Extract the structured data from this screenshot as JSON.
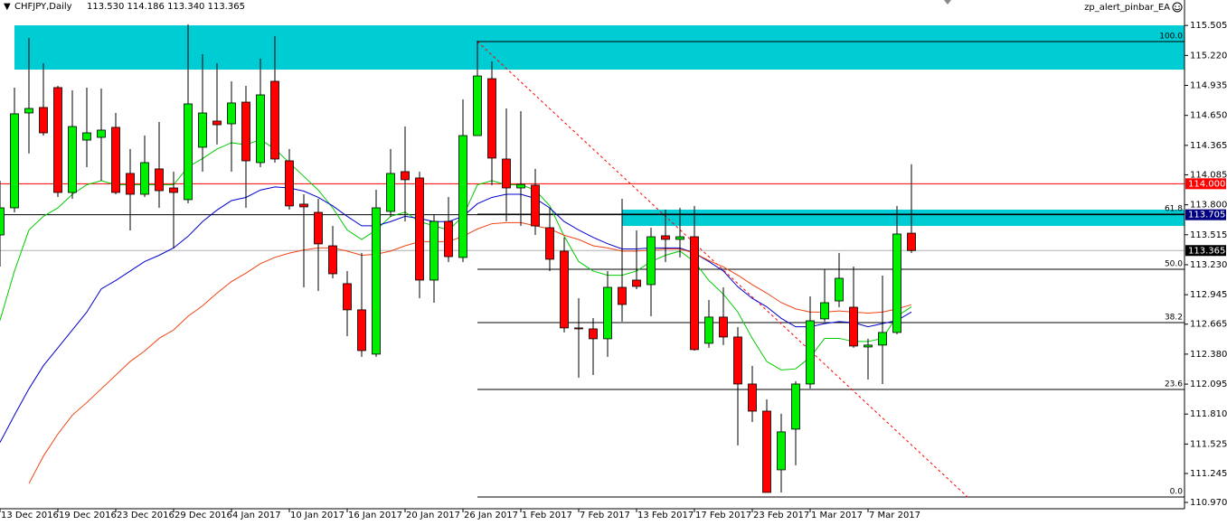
{
  "header": {
    "symbol": "CHFJPY,Daily",
    "quote": "113.530 114.186 113.340 113.365",
    "expert": "zp_alert_pinbar_EA"
  },
  "chart_data": {
    "type": "candlestick",
    "categories": [
      "13 Dec 2016",
      null,
      null,
      null,
      "19 Dec 2016",
      null,
      null,
      null,
      "23 Dec 2016",
      null,
      null,
      null,
      "29 Dec 2016",
      null,
      null,
      null,
      "4 Jan 2017",
      null,
      null,
      null,
      "10 Jan 2017",
      null,
      null,
      null,
      "16 Jan 2017",
      null,
      null,
      null,
      "20 Jan 2017",
      null,
      null,
      null,
      "26 Jan 2017",
      null,
      null,
      null,
      "1 Feb 2017",
      null,
      null,
      null,
      "7 Feb 2017",
      null,
      null,
      null,
      "13 Feb 2017",
      null,
      null,
      null,
      "17 Feb 2017",
      null,
      null,
      null,
      "23 Feb 2017",
      null,
      null,
      null,
      "1 Mar 2017",
      null,
      null,
      null,
      "7 Mar 2017",
      null,
      null,
      null
    ],
    "open": [
      113.513,
      113.771,
      114.673,
      114.725,
      114.914,
      113.917,
      114.415,
      114.441,
      114.536,
      114.098,
      113.9,
      114.141,
      113.96,
      113.849,
      114.347,
      114.596,
      114.57,
      114.776,
      114.201,
      114.974,
      114.218,
      113.806,
      113.728,
      113.41,
      113.05,
      112.801,
      112.38,
      113.737,
      114.115,
      114.055,
      113.084,
      113.642,
      113.299,
      114.458,
      114.999,
      114.235,
      113.96,
      113.986,
      113.582,
      113.359,
      112.629,
      112.62,
      112.526,
      113.015,
      113.084,
      113.041,
      113.505,
      113.471,
      113.496,
      112.483,
      112.732,
      112.543,
      112.096,
      111.838,
      111.28,
      111.667,
      112.096,
      112.715,
      112.886,
      112.826,
      112.448,
      112.466,
      112.586,
      113.53
    ],
    "high": [
      114.029,
      114.914,
      115.386,
      115.146,
      114.931,
      114.888,
      114.914,
      114.905,
      114.673,
      114.33,
      114.458,
      114.587,
      114.115,
      115.515,
      115.232,
      115.146,
      114.974,
      114.931,
      115.189,
      115.403,
      114.33,
      113.9,
      113.857,
      113.599,
      113.17,
      113.342,
      113.943,
      114.33,
      114.544,
      114.115,
      113.711,
      113.874,
      114.802,
      115.36,
      115.163,
      114.716,
      114.69,
      114.141,
      113.771,
      113.488,
      112.912,
      112.723,
      113.17,
      113.857,
      113.556,
      113.582,
      113.754,
      113.771,
      113.789,
      112.895,
      113.015,
      112.637,
      112.268,
      111.95,
      111.813,
      112.122,
      112.929,
      113.187,
      113.342,
      113.213,
      112.526,
      113.127,
      113.789,
      114.186
    ],
    "low": [
      113.213,
      113.728,
      114.287,
      114.458,
      113.874,
      113.857,
      114.158,
      114.029,
      113.9,
      113.556,
      113.874,
      113.771,
      113.384,
      113.814,
      114.115,
      114.373,
      114.115,
      113.771,
      114.158,
      114.201,
      113.754,
      113.015,
      112.981,
      113.101,
      112.551,
      112.354,
      112.354,
      113.685,
      113.642,
      112.912,
      112.869,
      113.256,
      113.256,
      114.458,
      113.986,
      113.642,
      113.599,
      113.513,
      113.17,
      112.586,
      112.156,
      112.182,
      112.354,
      112.689,
      112.998,
      112.74,
      113.256,
      113.299,
      112.414,
      112.44,
      112.466,
      111.512,
      111.735,
      111.065,
      111.065,
      111.323,
      112.053,
      112.689,
      112.826,
      112.44,
      112.139,
      112.096,
      112.569,
      113.34
    ],
    "close": [
      113.771,
      114.665,
      114.716,
      114.484,
      113.917,
      114.544,
      114.484,
      114.51,
      113.917,
      113.9,
      114.201,
      113.934,
      113.917,
      114.759,
      114.673,
      114.561,
      114.768,
      114.218,
      114.845,
      114.235,
      113.789,
      113.78,
      113.428,
      113.144,
      112.801,
      112.414,
      113.771,
      114.098,
      114.038,
      113.084,
      113.642,
      113.307,
      114.458,
      115.025,
      114.244,
      113.96,
      113.994,
      113.599,
      113.282,
      112.629,
      112.62,
      112.526,
      113.015,
      112.852,
      113.024,
      113.496,
      113.471,
      113.496,
      112.423,
      112.732,
      112.543,
      112.096,
      111.838,
      111.065,
      111.641,
      112.096,
      112.697,
      112.869,
      113.101,
      112.457,
      112.466,
      112.586,
      113.522,
      113.365
    ],
    "up_color": "#00ee00",
    "down_color": "#ff0000",
    "moving_averages": [
      {
        "color": "#00cc00",
        "values": [
          112.7,
          113.17,
          113.56,
          113.69,
          113.77,
          113.9,
          113.99,
          114.03,
          113.99,
          113.99,
          113.99,
          113.99,
          113.99,
          114.16,
          114.24,
          114.33,
          114.39,
          114.37,
          114.42,
          114.33,
          114.2,
          114.07,
          113.94,
          113.77,
          113.56,
          113.47,
          113.56,
          113.69,
          113.73,
          113.64,
          113.6,
          113.56,
          113.69,
          113.99,
          114.03,
          113.99,
          113.99,
          113.94,
          113.79,
          113.5,
          113.26,
          113.17,
          113.13,
          113.13,
          113.17,
          113.26,
          113.32,
          113.36,
          113.26,
          113.08,
          112.95,
          112.78,
          112.53,
          112.31,
          112.23,
          112.24,
          112.35,
          112.53,
          112.53,
          112.5,
          112.5,
          112.53,
          112.74,
          112.83
        ]
      },
      {
        "color": "#0000cc",
        "values": [
          111.54,
          111.8,
          112.05,
          112.27,
          112.44,
          112.61,
          112.78,
          113.0,
          113.08,
          113.17,
          113.26,
          113.32,
          113.39,
          113.5,
          113.64,
          113.75,
          113.84,
          113.87,
          113.94,
          113.97,
          113.96,
          113.93,
          113.87,
          113.79,
          113.69,
          113.6,
          113.6,
          113.64,
          113.69,
          113.67,
          113.64,
          113.64,
          113.69,
          113.81,
          113.87,
          113.9,
          113.9,
          113.86,
          113.77,
          113.64,
          113.56,
          113.49,
          113.43,
          113.38,
          113.38,
          113.39,
          113.39,
          113.39,
          113.34,
          113.26,
          113.17,
          113.02,
          112.91,
          112.83,
          112.72,
          112.64,
          112.64,
          112.67,
          112.69,
          112.68,
          112.64,
          112.67,
          112.7,
          112.78
        ]
      },
      {
        "color": "#ee4411",
        "values": [
          null,
          null,
          111.15,
          111.41,
          111.62,
          111.8,
          111.92,
          112.05,
          112.18,
          112.31,
          112.41,
          112.53,
          112.61,
          112.74,
          112.84,
          112.96,
          113.07,
          113.15,
          113.24,
          113.3,
          113.34,
          113.37,
          113.39,
          113.39,
          113.36,
          113.32,
          113.33,
          113.36,
          113.41,
          113.45,
          113.45,
          113.45,
          113.5,
          113.57,
          113.62,
          113.63,
          113.63,
          113.6,
          113.57,
          113.51,
          113.47,
          113.41,
          113.39,
          113.36,
          113.36,
          113.37,
          113.38,
          113.38,
          113.34,
          113.27,
          113.21,
          113.13,
          113.04,
          112.96,
          112.87,
          112.81,
          112.78,
          112.78,
          112.79,
          112.78,
          112.77,
          112.78,
          112.81,
          112.85
        ]
      }
    ],
    "zones": [
      {
        "start": 1,
        "top": 115.506,
        "bottom": 115.085,
        "color": "#00ccd4"
      },
      {
        "start": 43,
        "top": 113.754,
        "bottom": 113.599,
        "color": "#00ccd4"
      }
    ],
    "fibonacci": {
      "start": 33,
      "color": "#ff0000",
      "levels": [
        {
          "label": "100.0",
          "price": 115.352
        },
        {
          "label": "61.8",
          "price": 113.711
        },
        {
          "label": "50.0",
          "price": 113.187
        },
        {
          "label": "38.2",
          "price": 112.68
        },
        {
          "label": "23.6",
          "price": 112.044
        },
        {
          "label": "0.0",
          "price": 111.022
        }
      ]
    },
    "price_lines": [
      {
        "value": 114,
        "label": "114.000",
        "color": "#ff0000",
        "box": "#ff0000",
        "text": "#ffffff"
      },
      {
        "value": 113.705,
        "label": "113.705",
        "color": "#000000",
        "box": "#000080",
        "text": "#ffffff"
      },
      {
        "value": 113.365,
        "label": "113.365",
        "color": "#b0b0b0",
        "box": "#000000",
        "text": "#ffffff"
      }
    ],
    "ylim": [
      110.91,
      115.747
    ],
    "yticks": [
      115.505,
      {
        "value": 115.22,
        "label": "115.220"
      },
      114.935,
      {
        "value": 114.65,
        "label": "114.650"
      },
      114.365,
      114.085,
      {
        "value": 113.8,
        "label": "113.800"
      },
      113.515,
      {
        "value": 113.23,
        "label": "113.230"
      },
      112.945,
      112.665,
      {
        "value": 112.38,
        "label": "112.380"
      },
      112.095,
      {
        "value": 111.81,
        "label": "111.810"
      },
      111.525,
      111.245,
      {
        "value": 110.97,
        "label": "110.970"
      }
    ]
  }
}
